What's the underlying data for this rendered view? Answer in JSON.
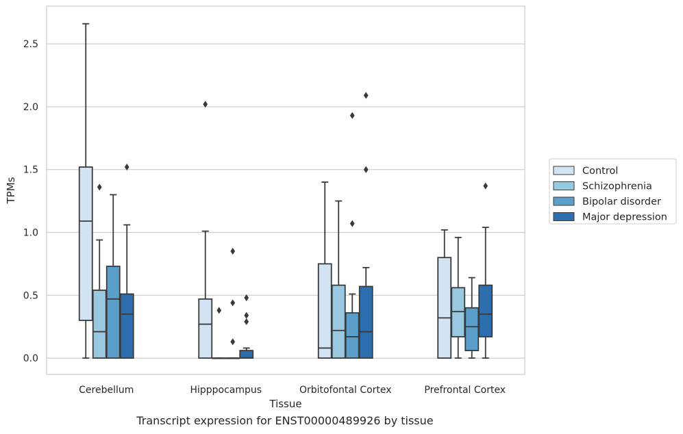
{
  "caption": "Transcript expression for ENST00000489926 by tissue",
  "chart_data": {
    "type": "box",
    "xlabel": "Tissue",
    "ylabel": "TPMs",
    "ylim": [
      -0.13,
      2.8
    ],
    "yticks": [
      0.0,
      0.5,
      1.0,
      1.5,
      2.0,
      2.5
    ],
    "ytick_labels": [
      "0.0",
      "0.5",
      "1.0",
      "1.5",
      "2.0",
      "2.5"
    ],
    "grid": "horizontal",
    "legend_position": "right",
    "categories": [
      "Cerebellum",
      "Hipppocampus",
      "Orbitofontal Cortex",
      "Prefrontal Cortex"
    ],
    "series": [
      {
        "name": "Control",
        "color": "#d2e3f3",
        "boxes": [
          {
            "min": 0.0,
            "q1": 0.3,
            "median": 1.09,
            "q3": 1.52,
            "max": 2.66,
            "outliers": []
          },
          {
            "min": 0.0,
            "q1": 0.0,
            "median": 0.27,
            "q3": 0.47,
            "max": 1.01,
            "outliers": [
              2.02
            ]
          },
          {
            "min": 0.0,
            "q1": 0.0,
            "median": 0.08,
            "q3": 0.75,
            "max": 1.4,
            "outliers": []
          },
          {
            "min": 0.0,
            "q1": 0.0,
            "median": 0.32,
            "q3": 0.8,
            "max": 1.02,
            "outliers": []
          }
        ]
      },
      {
        "name": "Schizophrenia",
        "color": "#9ac8e0",
        "boxes": [
          {
            "min": 0.0,
            "q1": 0.0,
            "median": 0.21,
            "q3": 0.54,
            "max": 0.94,
            "outliers": [
              1.36
            ]
          },
          {
            "min": 0.0,
            "q1": 0.0,
            "median": 0.0,
            "q3": 0.0,
            "max": 0.0,
            "outliers": [
              0.38
            ]
          },
          {
            "min": 0.0,
            "q1": 0.0,
            "median": 0.22,
            "q3": 0.58,
            "max": 1.25,
            "outliers": []
          },
          {
            "min": 0.0,
            "q1": 0.17,
            "median": 0.37,
            "q3": 0.56,
            "max": 0.96,
            "outliers": []
          }
        ]
      },
      {
        "name": "Bipolar disorder",
        "color": "#5a9ec9",
        "boxes": [
          {
            "min": 0.0,
            "q1": 0.0,
            "median": 0.47,
            "q3": 0.73,
            "max": 1.3,
            "outliers": []
          },
          {
            "min": 0.0,
            "q1": 0.0,
            "median": 0.0,
            "q3": 0.0,
            "max": 0.0,
            "outliers": [
              0.85,
              0.44,
              0.13
            ]
          },
          {
            "min": 0.0,
            "q1": 0.0,
            "median": 0.17,
            "q3": 0.36,
            "max": 0.51,
            "outliers": [
              1.93,
              1.07
            ]
          },
          {
            "min": 0.0,
            "q1": 0.06,
            "median": 0.25,
            "q3": 0.4,
            "max": 0.64,
            "outliers": []
          }
        ]
      },
      {
        "name": "Major depression",
        "color": "#2d6fae",
        "boxes": [
          {
            "min": 0.0,
            "q1": 0.0,
            "median": 0.35,
            "q3": 0.51,
            "max": 1.06,
            "outliers": [
              1.52
            ]
          },
          {
            "min": 0.0,
            "q1": 0.0,
            "median": 0.0,
            "q3": 0.06,
            "max": 0.08,
            "outliers": [
              0.48,
              0.34,
              0.29
            ]
          },
          {
            "min": 0.0,
            "q1": 0.0,
            "median": 0.21,
            "q3": 0.57,
            "max": 0.72,
            "outliers": [
              2.09,
              1.5
            ]
          },
          {
            "min": 0.0,
            "q1": 0.17,
            "median": 0.35,
            "q3": 0.58,
            "max": 1.04,
            "outliers": [
              1.37
            ]
          }
        ]
      }
    ]
  }
}
